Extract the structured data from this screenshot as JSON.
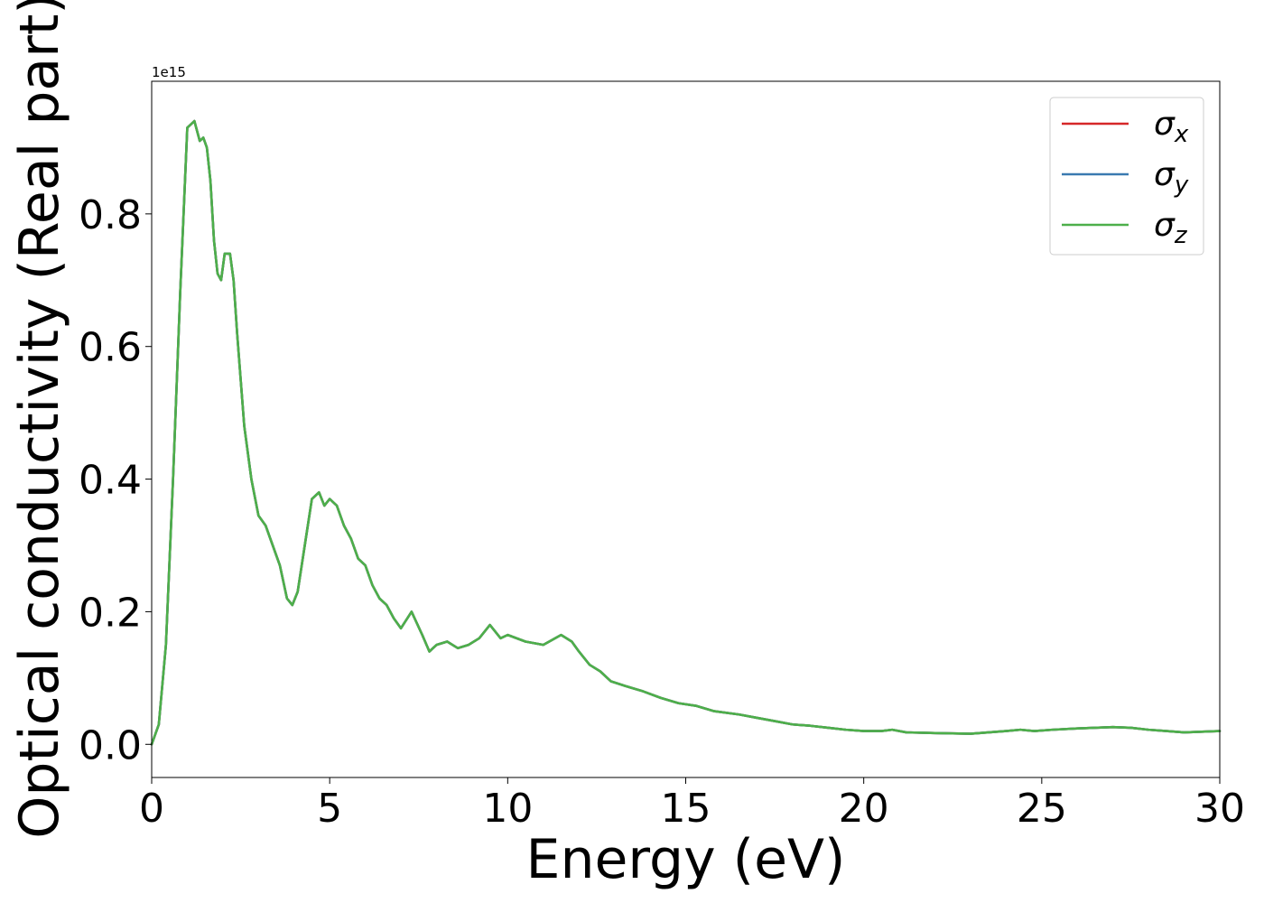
{
  "chart_data": {
    "type": "line",
    "xlabel": "Energy (eV)",
    "ylabel": "Optical conductivity (Real part)",
    "offset_text": "1e15",
    "scale_factor": 1000000000000000.0,
    "xlim": [
      0,
      30
    ],
    "ylim": [
      -0.05,
      1.0
    ],
    "xticks": [
      0,
      5,
      10,
      15,
      20,
      25,
      30
    ],
    "xtick_labels": [
      "0",
      "5",
      "10",
      "15",
      "20",
      "25",
      "30"
    ],
    "yticks": [
      0.0,
      0.2,
      0.4,
      0.6,
      0.8
    ],
    "ytick_labels": [
      "0.0",
      "0.2",
      "0.4",
      "0.6",
      "0.8"
    ],
    "grid": false,
    "legend_placement": "top-right",
    "x": [
      0,
      0.2,
      0.4,
      0.6,
      0.8,
      1.0,
      1.2,
      1.35,
      1.45,
      1.55,
      1.65,
      1.75,
      1.85,
      1.95,
      2.05,
      2.2,
      2.3,
      2.4,
      2.5,
      2.6,
      2.8,
      3.0,
      3.2,
      3.4,
      3.6,
      3.8,
      3.95,
      4.1,
      4.3,
      4.5,
      4.7,
      4.85,
      5.0,
      5.2,
      5.4,
      5.6,
      5.8,
      6.0,
      6.2,
      6.4,
      6.6,
      6.8,
      7.0,
      7.3,
      7.6,
      7.8,
      8.0,
      8.3,
      8.6,
      8.9,
      9.2,
      9.5,
      9.8,
      10.0,
      10.5,
      11.0,
      11.5,
      11.8,
      12.0,
      12.3,
      12.6,
      12.9,
      13.3,
      13.8,
      14.3,
      14.8,
      15.3,
      15.8,
      16.5,
      17.0,
      17.5,
      18.0,
      18.5,
      19.0,
      19.5,
      20.0,
      20.5,
      20.8,
      21.2,
      22.0,
      23.0,
      23.5,
      24.0,
      24.4,
      24.8,
      25.3,
      26.0,
      26.5,
      27.0,
      27.5,
      28.0,
      28.5,
      29.0,
      29.5,
      30.0
    ],
    "series": [
      {
        "name": "σx",
        "sub": "x",
        "color": "#d62728",
        "values": [
          0.0,
          0.03,
          0.15,
          0.4,
          0.68,
          0.93,
          0.94,
          0.91,
          0.915,
          0.9,
          0.85,
          0.76,
          0.71,
          0.7,
          0.74,
          0.74,
          0.7,
          0.62,
          0.55,
          0.48,
          0.4,
          0.345,
          0.33,
          0.3,
          0.27,
          0.22,
          0.21,
          0.23,
          0.3,
          0.37,
          0.38,
          0.36,
          0.37,
          0.36,
          0.33,
          0.31,
          0.28,
          0.27,
          0.24,
          0.22,
          0.21,
          0.19,
          0.175,
          0.2,
          0.165,
          0.14,
          0.15,
          0.155,
          0.145,
          0.15,
          0.16,
          0.18,
          0.16,
          0.165,
          0.155,
          0.15,
          0.165,
          0.155,
          0.14,
          0.12,
          0.11,
          0.095,
          0.088,
          0.08,
          0.07,
          0.062,
          0.058,
          0.05,
          0.045,
          0.04,
          0.035,
          0.03,
          0.028,
          0.025,
          0.022,
          0.02,
          0.02,
          0.022,
          0.018,
          0.017,
          0.016,
          0.018,
          0.02,
          0.022,
          0.02,
          0.022,
          0.024,
          0.025,
          0.026,
          0.025,
          0.022,
          0.02,
          0.018,
          0.019,
          0.02
        ]
      },
      {
        "name": "σy",
        "sub": "y",
        "color": "#3a7ab0",
        "values": [
          0.0,
          0.03,
          0.15,
          0.4,
          0.68,
          0.93,
          0.94,
          0.91,
          0.915,
          0.9,
          0.85,
          0.76,
          0.71,
          0.7,
          0.74,
          0.74,
          0.7,
          0.62,
          0.55,
          0.48,
          0.4,
          0.345,
          0.33,
          0.3,
          0.27,
          0.22,
          0.21,
          0.23,
          0.3,
          0.37,
          0.38,
          0.36,
          0.37,
          0.36,
          0.33,
          0.31,
          0.28,
          0.27,
          0.24,
          0.22,
          0.21,
          0.19,
          0.175,
          0.2,
          0.165,
          0.14,
          0.15,
          0.155,
          0.145,
          0.15,
          0.16,
          0.18,
          0.16,
          0.165,
          0.155,
          0.15,
          0.165,
          0.155,
          0.14,
          0.12,
          0.11,
          0.095,
          0.088,
          0.08,
          0.07,
          0.062,
          0.058,
          0.05,
          0.045,
          0.04,
          0.035,
          0.03,
          0.028,
          0.025,
          0.022,
          0.02,
          0.02,
          0.022,
          0.018,
          0.017,
          0.016,
          0.018,
          0.02,
          0.022,
          0.02,
          0.022,
          0.024,
          0.025,
          0.026,
          0.025,
          0.022,
          0.02,
          0.018,
          0.019,
          0.02
        ]
      },
      {
        "name": "σz",
        "sub": "z",
        "color": "#4daf4a",
        "values": [
          0.0,
          0.03,
          0.15,
          0.4,
          0.68,
          0.93,
          0.94,
          0.91,
          0.915,
          0.9,
          0.85,
          0.76,
          0.71,
          0.7,
          0.74,
          0.74,
          0.7,
          0.62,
          0.55,
          0.48,
          0.4,
          0.345,
          0.33,
          0.3,
          0.27,
          0.22,
          0.21,
          0.23,
          0.3,
          0.37,
          0.38,
          0.36,
          0.37,
          0.36,
          0.33,
          0.31,
          0.28,
          0.27,
          0.24,
          0.22,
          0.21,
          0.19,
          0.175,
          0.2,
          0.165,
          0.14,
          0.15,
          0.155,
          0.145,
          0.15,
          0.16,
          0.18,
          0.16,
          0.165,
          0.155,
          0.15,
          0.165,
          0.155,
          0.14,
          0.12,
          0.11,
          0.095,
          0.088,
          0.08,
          0.07,
          0.062,
          0.058,
          0.05,
          0.045,
          0.04,
          0.035,
          0.03,
          0.028,
          0.025,
          0.022,
          0.02,
          0.02,
          0.022,
          0.018,
          0.017,
          0.016,
          0.018,
          0.02,
          0.022,
          0.02,
          0.022,
          0.024,
          0.025,
          0.026,
          0.025,
          0.022,
          0.02,
          0.018,
          0.019,
          0.02
        ]
      }
    ]
  }
}
